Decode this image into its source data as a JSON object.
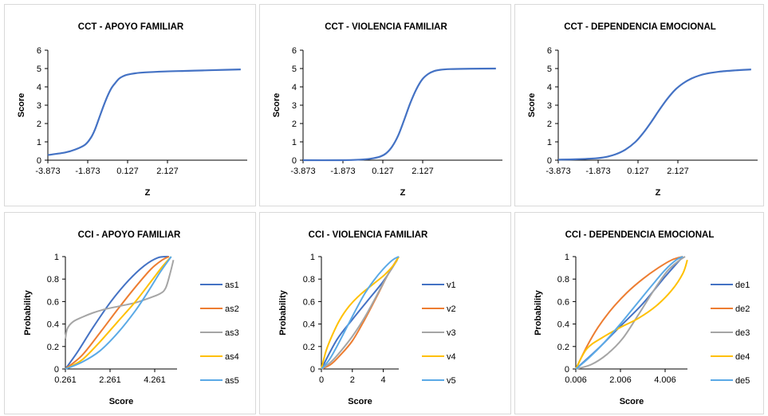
{
  "chart_data": [
    {
      "type": "line",
      "title": "CCT - APOYO FAMILIAR",
      "xlabel": "Z",
      "ylabel": "Score",
      "xlim": [
        -3.873,
        6.127
      ],
      "ylim": [
        0,
        6
      ],
      "yticks": [
        "0",
        "1",
        "2",
        "3",
        "4",
        "5",
        "6"
      ],
      "xticks": [
        -3.873,
        -1.873,
        0.127,
        2.127
      ],
      "xtick_labels": [
        "-3.873",
        "-1.873",
        "0.127",
        "2.127"
      ],
      "legend": "none",
      "colors": [
        "#4472c4"
      ],
      "series": [
        {
          "x": [
            -3.873,
            -3.0,
            -2.5,
            -2.0,
            -1.7,
            -1.5,
            -1.3,
            -1.1,
            -0.9,
            -0.7,
            -0.5,
            -0.3,
            -0.1,
            0.1,
            0.5,
            1.0,
            2.0,
            3.0,
            4.0,
            5.0,
            5.8
          ],
          "values": [
            0.28,
            0.42,
            0.58,
            0.85,
            1.25,
            1.7,
            2.3,
            2.9,
            3.45,
            3.9,
            4.2,
            4.45,
            4.58,
            4.66,
            4.74,
            4.79,
            4.84,
            4.87,
            4.9,
            4.93,
            4.95
          ]
        }
      ]
    },
    {
      "type": "line",
      "title": "CCT - VIOLENCIA FAMILIAR",
      "xlabel": "Z",
      "ylabel": "Score",
      "xlim": [
        -3.873,
        6.127
      ],
      "ylim": [
        0,
        6
      ],
      "yticks": [
        "0",
        "1",
        "2",
        "3",
        "4",
        "5",
        "6"
      ],
      "xticks": [
        -3.873,
        -1.873,
        0.127,
        2.127
      ],
      "xtick_labels": [
        "-3.873",
        "-1.873",
        "0.127",
        "2.127"
      ],
      "legend": "none",
      "colors": [
        "#4472c4"
      ],
      "series": [
        {
          "x": [
            -3.873,
            -2.0,
            -1.0,
            -0.5,
            0.0,
            0.3,
            0.6,
            0.9,
            1.2,
            1.5,
            1.8,
            2.1,
            2.4,
            2.7,
            3.0,
            3.5,
            4.5,
            5.8
          ],
          "values": [
            0.0,
            0.0,
            0.03,
            0.08,
            0.2,
            0.38,
            0.75,
            1.35,
            2.2,
            3.1,
            3.85,
            4.4,
            4.7,
            4.86,
            4.93,
            4.97,
            4.99,
            5.0
          ]
        }
      ]
    },
    {
      "type": "line",
      "title": "CCT - DEPENDENCIA EMOCIONAL",
      "xlabel": "Z",
      "ylabel": "Score",
      "xlim": [
        -3.873,
        6.127
      ],
      "ylim": [
        0,
        6
      ],
      "yticks": [
        "0",
        "1",
        "2",
        "3",
        "4",
        "5",
        "6"
      ],
      "xticks": [
        -3.873,
        -1.873,
        0.127,
        2.127
      ],
      "xtick_labels": [
        "-3.873",
        "-1.873",
        "0.127",
        "2.127"
      ],
      "legend": "none",
      "colors": [
        "#4472c4"
      ],
      "series": [
        {
          "x": [
            -3.873,
            -3.0,
            -2.0,
            -1.5,
            -1.0,
            -0.5,
            0.0,
            0.4,
            0.8,
            1.2,
            1.6,
            2.0,
            2.4,
            2.8,
            3.2,
            3.6,
            4.2,
            5.0,
            5.8
          ],
          "values": [
            0.03,
            0.05,
            0.1,
            0.17,
            0.32,
            0.58,
            1.0,
            1.5,
            2.1,
            2.75,
            3.35,
            3.85,
            4.2,
            4.45,
            4.62,
            4.73,
            4.83,
            4.9,
            4.95
          ]
        }
      ]
    },
    {
      "type": "line",
      "title": "CCI - APOYO FAMILIAR",
      "xlabel": "Score",
      "ylabel": "Probability",
      "xlim": [
        0.261,
        5.261
      ],
      "ylim": [
        0,
        1
      ],
      "yticks": [
        "0",
        "0.2",
        "0.4",
        "0.6",
        "0.8",
        "1"
      ],
      "xticks": [
        0.261,
        2.261,
        4.261
      ],
      "xtick_labels": [
        "0.261",
        "2.261",
        "4.261"
      ],
      "legend": "right",
      "series": [
        {
          "name": "as1",
          "color": "#4472c4",
          "x": [
            0.261,
            0.8,
            1.5,
            2.3,
            3.1,
            3.8,
            4.4,
            4.9
          ],
          "values": [
            0.0,
            0.15,
            0.37,
            0.6,
            0.79,
            0.92,
            0.99,
            1.0
          ]
        },
        {
          "name": "as2",
          "color": "#ed7d31",
          "x": [
            0.261,
            1.0,
            1.8,
            2.6,
            3.4,
            4.1,
            4.6,
            4.9
          ],
          "values": [
            0.0,
            0.12,
            0.32,
            0.53,
            0.73,
            0.89,
            0.97,
            1.0
          ]
        },
        {
          "name": "as3",
          "color": "#a5a5a5",
          "x": [
            0.261,
            0.35,
            0.6,
            1.0,
            1.5,
            2.0,
            2.7,
            3.4,
            4.0,
            4.5,
            4.75,
            4.95,
            5.1
          ],
          "values": [
            0.27,
            0.36,
            0.42,
            0.46,
            0.5,
            0.53,
            0.56,
            0.59,
            0.63,
            0.67,
            0.72,
            0.85,
            0.97
          ]
        },
        {
          "name": "as4",
          "color": "#ffc000",
          "x": [
            0.261,
            1.0,
            1.8,
            2.6,
            3.4,
            4.1,
            4.6,
            5.0
          ],
          "values": [
            0.0,
            0.08,
            0.24,
            0.42,
            0.6,
            0.78,
            0.91,
            1.0
          ]
        },
        {
          "name": "as5",
          "color": "#5aa9e6",
          "x": [
            0.261,
            1.0,
            1.8,
            2.6,
            3.4,
            4.0,
            4.5,
            5.0
          ],
          "values": [
            0.0,
            0.06,
            0.16,
            0.32,
            0.52,
            0.7,
            0.86,
            1.0
          ]
        }
      ]
    },
    {
      "type": "line",
      "title": "CCI - VIOLENCIA FAMILIAR",
      "xlabel": "Score",
      "ylabel": "Probability",
      "xlim": [
        0,
        5
      ],
      "ylim": [
        0,
        1
      ],
      "yticks": [
        "0",
        "0.2",
        "0.4",
        "0.6",
        "0.8",
        "1"
      ],
      "xticks": [
        0,
        2,
        4
      ],
      "xtick_labels": [
        "0",
        "2",
        "4"
      ],
      "legend": "right",
      "series": [
        {
          "name": "v1",
          "color": "#4472c4",
          "x": [
            0,
            1,
            2,
            3,
            4,
            4.9
          ],
          "values": [
            0.0,
            0.26,
            0.44,
            0.61,
            0.78,
            0.97
          ]
        },
        {
          "name": "v2",
          "color": "#ed7d31",
          "x": [
            0,
            0.6,
            1.2,
            2.0,
            2.8,
            3.6,
            4.3,
            5.0
          ],
          "values": [
            0.0,
            0.04,
            0.12,
            0.25,
            0.44,
            0.65,
            0.84,
            1.0
          ]
        },
        {
          "name": "v3",
          "color": "#a5a5a5",
          "x": [
            0,
            0.6,
            1.2,
            2.0,
            2.8,
            3.6,
            4.3,
            5.0
          ],
          "values": [
            0.0,
            0.06,
            0.15,
            0.29,
            0.46,
            0.66,
            0.84,
            1.0
          ]
        },
        {
          "name": "v4",
          "color": "#ffc000",
          "x": [
            0,
            0.3,
            0.7,
            1.2,
            1.8,
            2.5,
            3.3,
            4.1,
            4.7,
            5.0
          ],
          "values": [
            0.0,
            0.16,
            0.3,
            0.44,
            0.56,
            0.66,
            0.75,
            0.84,
            0.93,
            1.0
          ]
        },
        {
          "name": "v5",
          "color": "#5aa9e6",
          "x": [
            0,
            0.5,
            1.0,
            1.6,
            2.2,
            2.8,
            3.4,
            4.0,
            4.6,
            5.0
          ],
          "values": [
            0.0,
            0.08,
            0.2,
            0.36,
            0.52,
            0.67,
            0.79,
            0.89,
            0.97,
            1.0
          ]
        }
      ]
    },
    {
      "type": "line",
      "title": "CCI - DEPENDENCIA EMOCIONAL",
      "xlabel": "Score",
      "ylabel": "Probability",
      "xlim": [
        0.006,
        5.006
      ],
      "ylim": [
        0,
        1
      ],
      "yticks": [
        "0",
        "0.2",
        "0.4",
        "0.6",
        "0.8",
        "1"
      ],
      "xticks": [
        0.006,
        2.006,
        4.006
      ],
      "xtick_labels": [
        "0.006",
        "2.006",
        "4.006"
      ],
      "legend": "right",
      "series": [
        {
          "name": "de1",
          "color": "#4472c4",
          "x": [
            0.006,
            1.0,
            2.0,
            3.0,
            4.0,
            4.8
          ],
          "values": [
            0.0,
            0.18,
            0.38,
            0.58,
            0.82,
            1.0
          ]
        },
        {
          "name": "de2",
          "color": "#ed7d31",
          "x": [
            0.006,
            0.5,
            1.0,
            1.6,
            2.3,
            3.0,
            3.7,
            4.3,
            4.8
          ],
          "values": [
            0.0,
            0.2,
            0.37,
            0.53,
            0.68,
            0.8,
            0.9,
            0.97,
            1.0
          ]
        },
        {
          "name": "de3",
          "color": "#a5a5a5",
          "x": [
            0.006,
            0.7,
            1.4,
            2.1,
            2.8,
            3.5,
            4.1,
            4.6,
            4.9
          ],
          "values": [
            0.0,
            0.04,
            0.13,
            0.27,
            0.48,
            0.7,
            0.87,
            0.96,
            1.0
          ]
        },
        {
          "name": "de4",
          "color": "#ffc000",
          "x": [
            0.006,
            0.5,
            1.2,
            2.0,
            2.8,
            3.6,
            4.3,
            4.8,
            5.0
          ],
          "values": [
            0.0,
            0.18,
            0.28,
            0.37,
            0.45,
            0.56,
            0.7,
            0.85,
            0.97
          ]
        },
        {
          "name": "de5",
          "color": "#5aa9e6",
          "x": [
            0.006,
            0.6,
            1.3,
            2.0,
            2.7,
            3.4,
            4.0,
            4.5,
            4.8
          ],
          "values": [
            0.0,
            0.1,
            0.24,
            0.4,
            0.57,
            0.74,
            0.88,
            0.97,
            1.0
          ]
        }
      ]
    }
  ]
}
